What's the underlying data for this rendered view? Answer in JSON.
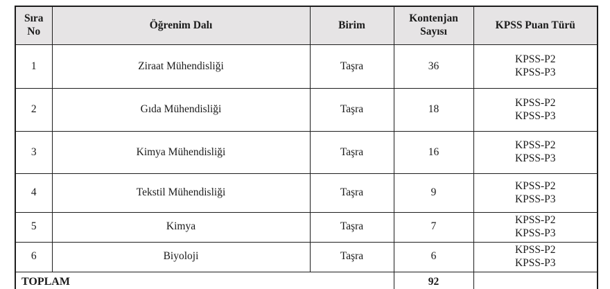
{
  "table": {
    "headers": {
      "sira_no": "Sıra No",
      "ogrenim_dali": "Öğrenim Dalı",
      "birim": "Birim",
      "kontenjan_sayisi": "Kontenjan Sayısı",
      "kpss_puan_turu": "KPSS Puan Türü"
    },
    "rows": [
      {
        "no": "1",
        "dal": "Ziraat Mühendisliği",
        "birim": "Taşra",
        "kontenjan": "36",
        "kpss": "KPSS-P2\nKPSS-P3"
      },
      {
        "no": "2",
        "dal": "Gıda Mühendisliği",
        "birim": "Taşra",
        "kontenjan": "18",
        "kpss": "KPSS-P2\nKPSS-P3"
      },
      {
        "no": "3",
        "dal": "Kimya Mühendisliği",
        "birim": "Taşra",
        "kontenjan": "16",
        "kpss": "KPSS-P2\nKPSS-P3"
      },
      {
        "no": "4",
        "dal": "Tekstil Mühendisliği",
        "birim": "Taşra",
        "kontenjan": "9",
        "kpss": "KPSS-P2\nKPSS-P3"
      },
      {
        "no": "5",
        "dal": "Kimya",
        "birim": "Taşra",
        "kontenjan": "7",
        "kpss": "KPSS-P2\nKPSS-P3"
      },
      {
        "no": "6",
        "dal": "Biyoloji",
        "birim": "Taşra",
        "kontenjan": "6",
        "kpss": "KPSS-P2\nKPSS-P3"
      }
    ],
    "footer": {
      "label": "TOPLAM",
      "total": "92",
      "kpss": ""
    },
    "colors": {
      "header_bg": "#e6e4e5",
      "border": "#1c1c1c",
      "text": "#1a1a1a",
      "page_bg": "#ffffff"
    }
  }
}
